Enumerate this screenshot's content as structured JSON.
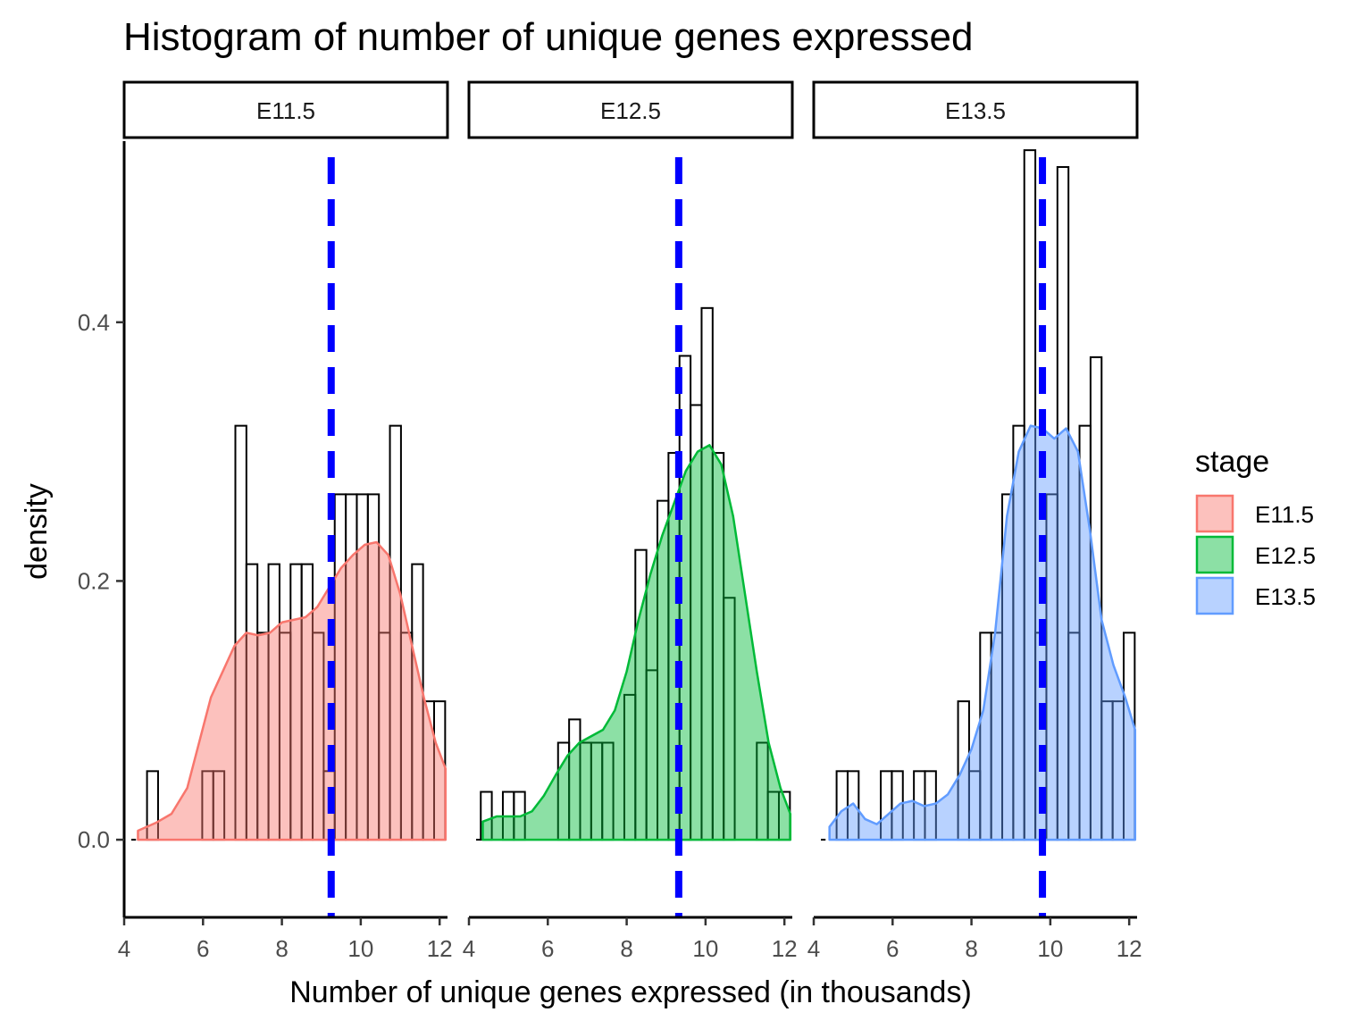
{
  "chart_data": {
    "type": "histogram",
    "title": "Histogram of number of unique genes expressed",
    "xlabel": "Number of unique genes expressed (in thousands)",
    "ylabel": "density",
    "xlim": [
      4,
      12.2
    ],
    "ylim": [
      -0.06,
      0.54
    ],
    "x_ticks": [
      4,
      6,
      8,
      10,
      12
    ],
    "y_ticks": [
      0.0,
      0.2,
      0.4
    ],
    "y_tick_labels": [
      "0.0",
      "0.2",
      "0.4"
    ],
    "bin_width": 0.28,
    "bin_start": 4.3,
    "grid": false,
    "legend_position": "right",
    "legend": {
      "title": "stage",
      "entries": [
        {
          "label": "E11.5",
          "fill": "#F8766D",
          "color": "#F8766D"
        },
        {
          "label": "E12.5",
          "fill": "#00BA38",
          "color": "#00BA38"
        },
        {
          "label": "E13.5",
          "fill": "#619CFF",
          "color": "#619CFF"
        }
      ]
    },
    "mean_line_color": "#0000FF",
    "panels": [
      {
        "label": "E11.5",
        "color": "#F8766D",
        "mean": 9.25,
        "bin_heights": [
          0,
          0.053,
          0,
          0,
          0,
          0,
          0.053,
          0.053,
          0,
          0.32,
          0.213,
          0.16,
          0.213,
          0.16,
          0.213,
          0.213,
          0.16,
          0.053,
          0.267,
          0.267,
          0.267,
          0.267,
          0.16,
          0.32,
          0.16,
          0.213,
          0.107,
          0.107
        ],
        "density": {
          "x": [
            4.35,
            4.8,
            5.2,
            5.6,
            5.9,
            6.2,
            6.5,
            6.8,
            7.1,
            7.4,
            7.7,
            8.0,
            8.3,
            8.6,
            8.9,
            9.2,
            9.5,
            9.8,
            10.1,
            10.4,
            10.7,
            11.0,
            11.3,
            11.6,
            11.9,
            12.15
          ],
          "y": [
            0.007,
            0.013,
            0.02,
            0.04,
            0.075,
            0.11,
            0.13,
            0.15,
            0.16,
            0.158,
            0.16,
            0.168,
            0.17,
            0.172,
            0.18,
            0.195,
            0.21,
            0.22,
            0.228,
            0.23,
            0.22,
            0.19,
            0.15,
            0.11,
            0.075,
            0.055
          ]
        }
      },
      {
        "label": "E12.5",
        "color": "#00BA38",
        "mean": 9.32,
        "bin_heights": [
          0.037,
          0,
          0.037,
          0.037,
          0,
          0,
          0,
          0.075,
          0.093,
          0.075,
          0.075,
          0.075,
          0,
          0.112,
          0.224,
          0.131,
          0.262,
          0.299,
          0.374,
          0.336,
          0.411,
          0.299,
          0.187,
          0,
          0,
          0.075,
          0.037,
          0.037
        ],
        "density": {
          "x": [
            4.35,
            4.7,
            5.0,
            5.3,
            5.6,
            5.9,
            6.2,
            6.5,
            6.8,
            7.1,
            7.4,
            7.7,
            8.0,
            8.3,
            8.6,
            8.9,
            9.2,
            9.5,
            9.8,
            10.1,
            10.4,
            10.7,
            11.0,
            11.3,
            11.6,
            11.9,
            12.15
          ],
          "y": [
            0.014,
            0.018,
            0.018,
            0.018,
            0.022,
            0.034,
            0.05,
            0.065,
            0.075,
            0.08,
            0.085,
            0.1,
            0.13,
            0.17,
            0.205,
            0.235,
            0.26,
            0.285,
            0.3,
            0.305,
            0.29,
            0.25,
            0.19,
            0.13,
            0.075,
            0.04,
            0.02
          ]
        }
      },
      {
        "label": "E13.5",
        "color": "#619CFF",
        "mean": 9.8,
        "bin_heights": [
          0,
          0.053,
          0.053,
          0,
          0,
          0.053,
          0.053,
          0,
          0.053,
          0.053,
          0,
          0,
          0.107,
          0.053,
          0.16,
          0.16,
          0.267,
          0.32,
          0.533,
          0.16,
          0.267,
          0.52,
          0.16,
          0.32,
          0.373,
          0.107,
          0.107,
          0.16
        ],
        "density": {
          "x": [
            4.4,
            4.7,
            5.0,
            5.3,
            5.6,
            5.9,
            6.2,
            6.5,
            6.8,
            7.1,
            7.4,
            7.7,
            8.0,
            8.3,
            8.6,
            8.9,
            9.2,
            9.5,
            9.8,
            10.1,
            10.4,
            10.7,
            11.0,
            11.3,
            11.6,
            11.9,
            12.15
          ],
          "y": [
            0.01,
            0.022,
            0.028,
            0.016,
            0.012,
            0.02,
            0.028,
            0.03,
            0.026,
            0.028,
            0.035,
            0.05,
            0.07,
            0.1,
            0.16,
            0.25,
            0.3,
            0.32,
            0.318,
            0.31,
            0.318,
            0.3,
            0.24,
            0.17,
            0.135,
            0.11,
            0.085
          ]
        }
      }
    ]
  }
}
